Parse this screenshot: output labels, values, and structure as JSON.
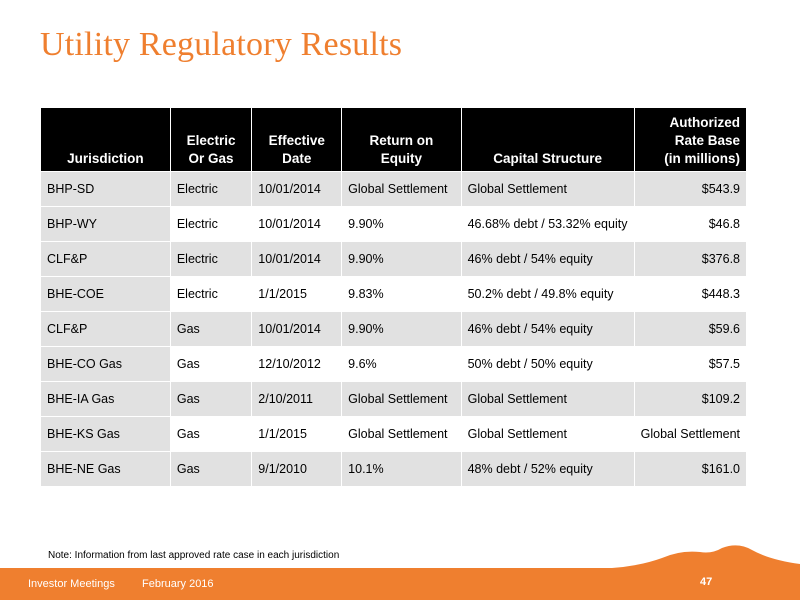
{
  "title": "Utility Regulatory Results",
  "table": {
    "headers": [
      [
        "Jurisdiction"
      ],
      [
        "Electric",
        "Or Gas"
      ],
      [
        "Effective",
        "Date"
      ],
      [
        "Return on",
        "Equity"
      ],
      [
        "Capital Structure"
      ],
      [
        "Authorized",
        "Rate Base",
        "(in millions)"
      ]
    ],
    "rows": [
      [
        "BHP-SD",
        "Electric",
        "10/01/2014",
        "Global Settlement",
        "Global Settlement",
        "$543.9"
      ],
      [
        "BHP-WY",
        "Electric",
        "10/01/2014",
        "9.90%",
        "46.68% debt / 53.32% equity",
        "$46.8"
      ],
      [
        "CLF&P",
        "Electric",
        "10/01/2014",
        "9.90%",
        "46% debt / 54% equity",
        "$376.8"
      ],
      [
        "BHE-COE",
        "Electric",
        "1/1/2015",
        "9.83%",
        "50.2% debt / 49.8% equity",
        "$448.3"
      ],
      [
        "CLF&P",
        "Gas",
        "10/01/2014",
        "9.90%",
        "46% debt / 54% equity",
        "$59.6"
      ],
      [
        "BHE-CO Gas",
        "Gas",
        "12/10/2012",
        "9.6%",
        "50% debt / 50% equity",
        "$57.5"
      ],
      [
        "BHE-IA Gas",
        "Gas",
        "2/10/2011",
        "Global Settlement",
        "Global Settlement",
        "$109.2"
      ],
      [
        "BHE-KS Gas",
        "Gas",
        "1/1/2015",
        "Global Settlement",
        "Global Settlement",
        "Global Settlement"
      ],
      [
        "BHE-NE Gas",
        "Gas",
        "9/1/2010",
        "10.1%",
        "48% debt / 52% equity",
        "$161.0"
      ]
    ]
  },
  "note": "Note: Information from last approved rate case in each jurisdiction",
  "footer": {
    "event": "Investor Meetings",
    "date": "February 2016",
    "page": "47"
  },
  "colors": {
    "accent": "#ef7f2f",
    "header_bg": "#000000",
    "row_shade": "#e1e1e1"
  }
}
